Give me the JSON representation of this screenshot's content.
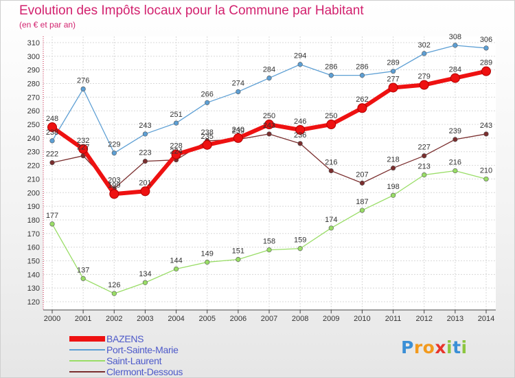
{
  "chart_data": {
    "type": "line",
    "title": "Evolution des Impôts locaux pour la Commune par Habitant",
    "subtitle": "(en € et par an)",
    "xlabel": "",
    "ylabel": "",
    "categories": [
      "2000",
      "2001",
      "2002",
      "2003",
      "2004",
      "2005",
      "2006",
      "2007",
      "2008",
      "2009",
      "2010",
      "2011",
      "2012",
      "2013",
      "2014"
    ],
    "ylim": [
      120,
      310
    ],
    "yticks": [
      120,
      130,
      140,
      150,
      160,
      170,
      180,
      190,
      200,
      210,
      220,
      230,
      240,
      250,
      260,
      270,
      280,
      290,
      300,
      310
    ],
    "grid": true,
    "series": [
      {
        "name": "BAZENS",
        "color": "#ee1111",
        "values": [
          248,
          232,
          199,
          201,
          228,
          235,
          240,
          250,
          246,
          250,
          262,
          277,
          279,
          284,
          289
        ]
      },
      {
        "name": "Port-Sainte-Marie",
        "color": "#5d9fd4",
        "values": [
          238,
          276,
          229,
          243,
          251,
          266,
          274,
          284,
          294,
          286,
          286,
          289,
          302,
          308,
          306
        ]
      },
      {
        "name": "Saint-Laurent",
        "color": "#99dd66",
        "values": [
          177,
          137,
          126,
          134,
          144,
          149,
          151,
          158,
          159,
          174,
          187,
          198,
          213,
          216,
          210
        ]
      },
      {
        "name": "Clermont-Dessous",
        "color": "#7a2e2e",
        "values": [
          222,
          227,
          203,
          223,
          224,
          238,
          239,
          243,
          236,
          216,
          207,
          218,
          227,
          239,
          243
        ]
      }
    ]
  },
  "logo": {
    "letters": [
      "P",
      "r",
      "o",
      "x",
      "i",
      "t",
      "i"
    ]
  },
  "colors": {
    "title": "#d2216e",
    "legend_text": "#4d59c9"
  }
}
